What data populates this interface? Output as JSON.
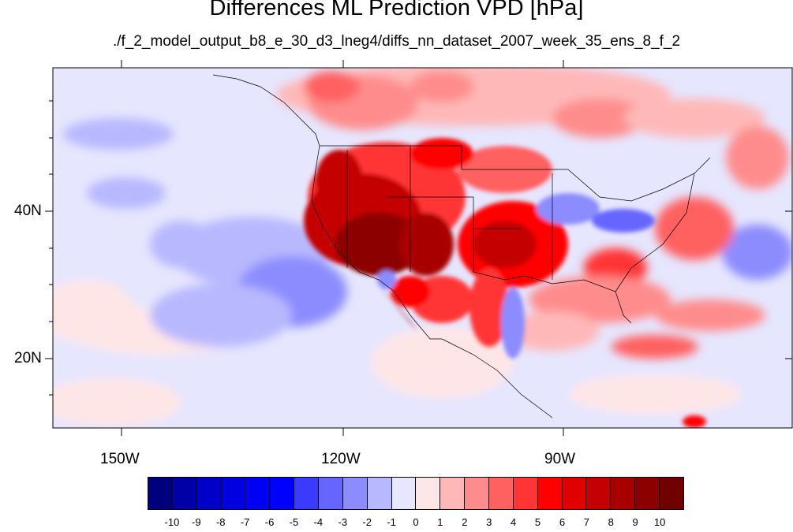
{
  "title": "Differences ML Prediction VPD [hPa]",
  "subtitle": "./f_2_model_output_b8_e_30_d3_lneg4/diffs_nn_dataset_2007_week_35_ens_8_f_2",
  "lat_labels": [
    "40N",
    "20N"
  ],
  "lon_labels": [
    "150W",
    "120W",
    "90W"
  ],
  "colorbar": {
    "labels": [
      "-10",
      "-9",
      "-8",
      "-7",
      "-6",
      "-5",
      "-4",
      "-3",
      "-2",
      "-1",
      "0",
      "1",
      "2",
      "3",
      "4",
      "5",
      "6",
      "7",
      "8",
      "9",
      "10"
    ],
    "colors": [
      "#00007f",
      "#0000a8",
      "#0000c8",
      "#0000e0",
      "#0000f6",
      "#0000ff",
      "#3b3bff",
      "#6666ff",
      "#8c8cff",
      "#b8b8ff",
      "#e6e6ff",
      "#ffe6e6",
      "#ffb8b8",
      "#ff8c8c",
      "#ff6060",
      "#ff3434",
      "#ff0000",
      "#e00000",
      "#c40000",
      "#a80000",
      "#8c0000",
      "#700000"
    ]
  },
  "colors": {
    "ocean_background": "#e6e6ff",
    "strong_positive": "#700000",
    "positive": "#ff3434",
    "negative": "#8c8cff"
  }
}
